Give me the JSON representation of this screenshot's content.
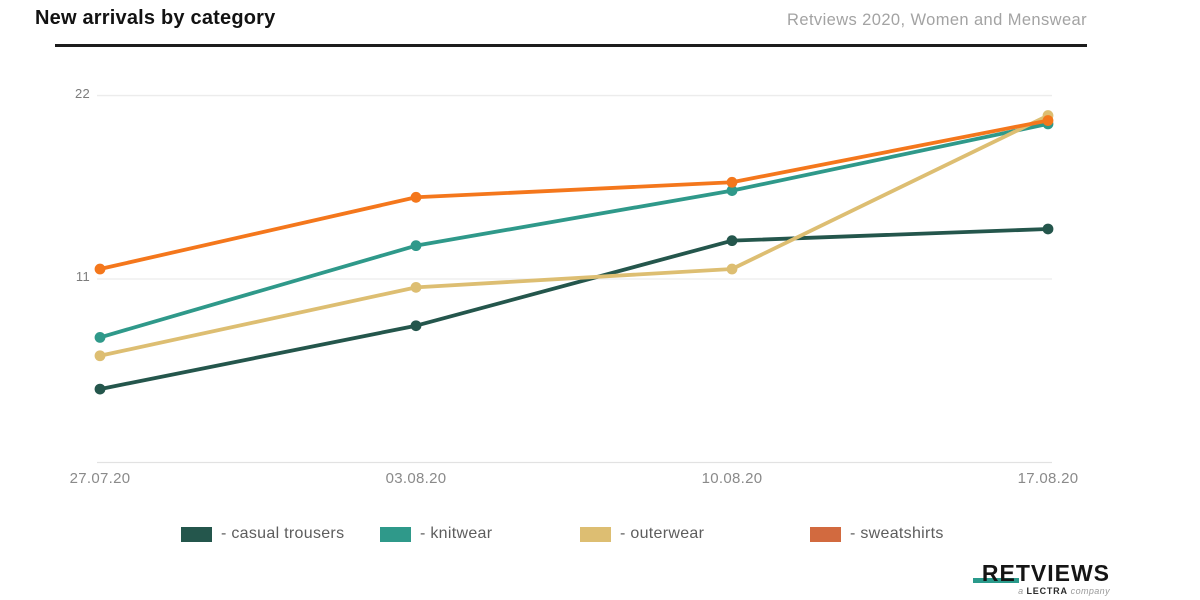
{
  "header": {
    "title": "New arrivals by category",
    "subtitle": "Retviews 2020, Women and Menswear"
  },
  "chart_data": {
    "type": "line",
    "title": "New arrivals by category",
    "categories": [
      "27.07.20",
      "03.08.20",
      "10.08.20",
      "17.08.20"
    ],
    "series": [
      {
        "name": "casual trousers",
        "legend_label": "- casual trousers",
        "color": "#24564c",
        "values": [
          4.4,
          8.2,
          13.3,
          14.0
        ]
      },
      {
        "name": "knitwear",
        "legend_label": "- knitwear",
        "color": "#2f998a",
        "values": [
          7.5,
          13.0,
          16.3,
          20.3
        ]
      },
      {
        "name": "outerwear",
        "legend_label": "- outerwear",
        "color": "#ddbe72",
        "values": [
          6.4,
          10.5,
          11.6,
          20.8
        ]
      },
      {
        "name": "sweatshirts",
        "legend_label": "- sweatshirts",
        "color": "#f4771c",
        "legend_color": "#d26a3f",
        "values": [
          11.6,
          15.9,
          16.8,
          20.5
        ]
      }
    ],
    "yticks": [
      22,
      11
    ],
    "ylim": [
      0,
      23.5
    ],
    "xlabel": "",
    "ylabel": "",
    "grid": "horizontal",
    "legend_position": "bottom"
  },
  "logo": {
    "brand": "RETVIEWS",
    "tagline_prefix": "a",
    "tagline_brand": "LECTRA",
    "tagline_suffix": "company",
    "accent_color": "#2a9a8b"
  }
}
